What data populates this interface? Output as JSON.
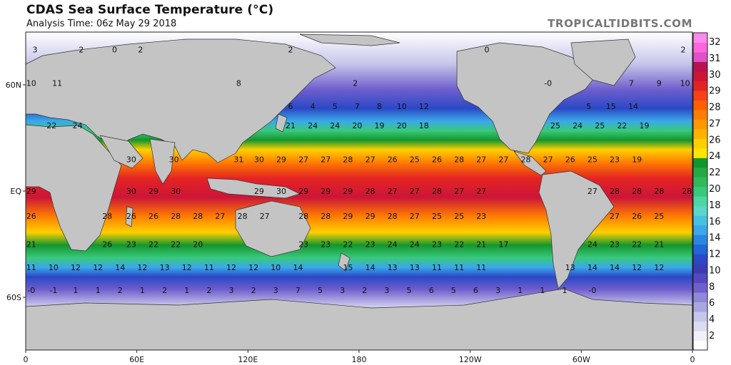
{
  "header": {
    "title": "CDAS Sea Surface Temperature (°C)",
    "subtitle": "Analysis Time: 06z May 29 2018",
    "brand": "TROPICALTIDBITS.COM"
  },
  "axes": {
    "longitude_ticks": [
      "0",
      "60E",
      "120E",
      "180",
      "120W",
      "60W",
      "0"
    ],
    "latitude_ticks": [
      "60N",
      "EQ",
      "60S"
    ]
  },
  "colorbar": {
    "ticks": [
      "32",
      "31",
      "30",
      "29",
      "28",
      "27",
      "26",
      "24",
      "22",
      "20",
      "18",
      "16",
      "14",
      "12",
      "10",
      "8",
      "6",
      "4",
      "2"
    ],
    "colors": [
      "#ffffff",
      "#f0f0f8",
      "#dcdcf0",
      "#c6c6ea",
      "#a9a6e2",
      "#8f87d8",
      "#6f5fcd",
      "#5448c0",
      "#3a3cb4",
      "#2b48c6",
      "#1f66d8",
      "#2a86e2",
      "#3aa8ea",
      "#45c2e2",
      "#5bd6c8",
      "#4cd7a2",
      "#39c97c",
      "#2fba5a",
      "#25aa41",
      "#14962e",
      "#ffe600",
      "#ffd000",
      "#ffb200",
      "#ff9800",
      "#ff7d00",
      "#ff5f00",
      "#f73f1a",
      "#e42323",
      "#cc1638",
      "#b8114f",
      "#e050c8",
      "#ff66dd",
      "#ff88ee"
    ]
  },
  "temperature_labels": [
    {
      "lon": 5,
      "lat": 80,
      "v": "3"
    },
    {
      "lon": 30,
      "lat": 80,
      "v": "2"
    },
    {
      "lon": 48,
      "lat": 80,
      "v": "0"
    },
    {
      "lon": 62,
      "lat": 80,
      "v": "2"
    },
    {
      "lon": 143,
      "lat": 80,
      "v": "2"
    },
    {
      "lon": 249,
      "lat": 80,
      "v": "0"
    },
    {
      "lon": 355,
      "lat": 80,
      "v": "2"
    },
    {
      "lon": 3,
      "lat": 61,
      "v": "10"
    },
    {
      "lon": 17,
      "lat": 61,
      "v": "11"
    },
    {
      "lon": 115,
      "lat": 61,
      "v": "8"
    },
    {
      "lon": 178,
      "lat": 61,
      "v": "2"
    },
    {
      "lon": 282,
      "lat": 61,
      "v": "-0"
    },
    {
      "lon": 327,
      "lat": 61,
      "v": "7"
    },
    {
      "lon": 342,
      "lat": 61,
      "v": "9"
    },
    {
      "lon": 356,
      "lat": 61,
      "v": "10"
    },
    {
      "lon": 143,
      "lat": 48,
      "v": "6"
    },
    {
      "lon": 155,
      "lat": 48,
      "v": "4"
    },
    {
      "lon": 167,
      "lat": 48,
      "v": "5"
    },
    {
      "lon": 179,
      "lat": 48,
      "v": "7"
    },
    {
      "lon": 191,
      "lat": 48,
      "v": "8"
    },
    {
      "lon": 203,
      "lat": 48,
      "v": "10"
    },
    {
      "lon": 215,
      "lat": 48,
      "v": "12"
    },
    {
      "lon": 304,
      "lat": 48,
      "v": "5"
    },
    {
      "lon": 316,
      "lat": 48,
      "v": "15"
    },
    {
      "lon": 328,
      "lat": 48,
      "v": "14"
    },
    {
      "lon": 28,
      "lat": 37,
      "v": "24"
    },
    {
      "lon": 14,
      "lat": 37,
      "v": "22"
    },
    {
      "lon": 143,
      "lat": 37,
      "v": "21"
    },
    {
      "lon": 155,
      "lat": 37,
      "v": "24"
    },
    {
      "lon": 167,
      "lat": 37,
      "v": "24"
    },
    {
      "lon": 179,
      "lat": 37,
      "v": "20"
    },
    {
      "lon": 191,
      "lat": 37,
      "v": "19"
    },
    {
      "lon": 203,
      "lat": 37,
      "v": "20"
    },
    {
      "lon": 215,
      "lat": 37,
      "v": "18"
    },
    {
      "lon": 286,
      "lat": 37,
      "v": "25"
    },
    {
      "lon": 298,
      "lat": 37,
      "v": "24"
    },
    {
      "lon": 310,
      "lat": 37,
      "v": "25"
    },
    {
      "lon": 322,
      "lat": 37,
      "v": "22"
    },
    {
      "lon": 334,
      "lat": 37,
      "v": "19"
    },
    {
      "lon": 57,
      "lat": 18,
      "v": "30"
    },
    {
      "lon": 80,
      "lat": 18,
      "v": "30"
    },
    {
      "lon": 115,
      "lat": 18,
      "v": "31"
    },
    {
      "lon": 126,
      "lat": 18,
      "v": "30"
    },
    {
      "lon": 138,
      "lat": 18,
      "v": "29"
    },
    {
      "lon": 150,
      "lat": 18,
      "v": "27"
    },
    {
      "lon": 162,
      "lat": 18,
      "v": "27"
    },
    {
      "lon": 174,
      "lat": 18,
      "v": "28"
    },
    {
      "lon": 186,
      "lat": 18,
      "v": "27"
    },
    {
      "lon": 198,
      "lat": 18,
      "v": "26"
    },
    {
      "lon": 210,
      "lat": 18,
      "v": "25"
    },
    {
      "lon": 222,
      "lat": 18,
      "v": "26"
    },
    {
      "lon": 234,
      "lat": 18,
      "v": "28"
    },
    {
      "lon": 246,
      "lat": 18,
      "v": "27"
    },
    {
      "lon": 258,
      "lat": 18,
      "v": "27"
    },
    {
      "lon": 270,
      "lat": 18,
      "v": "28"
    },
    {
      "lon": 282,
      "lat": 18,
      "v": "27"
    },
    {
      "lon": 294,
      "lat": 18,
      "v": "26"
    },
    {
      "lon": 306,
      "lat": 18,
      "v": "25"
    },
    {
      "lon": 318,
      "lat": 18,
      "v": "23"
    },
    {
      "lon": 330,
      "lat": 18,
      "v": "19"
    },
    {
      "lon": 3,
      "lat": 0,
      "v": "29"
    },
    {
      "lon": 57,
      "lat": 0,
      "v": "30"
    },
    {
      "lon": 69,
      "lat": 0,
      "v": "29"
    },
    {
      "lon": 81,
      "lat": 0,
      "v": "30"
    },
    {
      "lon": 126,
      "lat": 0,
      "v": "29"
    },
    {
      "lon": 138,
      "lat": 0,
      "v": "30"
    },
    {
      "lon": 150,
      "lat": 0,
      "v": "29"
    },
    {
      "lon": 162,
      "lat": 0,
      "v": "29"
    },
    {
      "lon": 174,
      "lat": 0,
      "v": "29"
    },
    {
      "lon": 186,
      "lat": 0,
      "v": "28"
    },
    {
      "lon": 198,
      "lat": 0,
      "v": "27"
    },
    {
      "lon": 210,
      "lat": 0,
      "v": "27"
    },
    {
      "lon": 222,
      "lat": 0,
      "v": "28"
    },
    {
      "lon": 234,
      "lat": 0,
      "v": "27"
    },
    {
      "lon": 246,
      "lat": 0,
      "v": "27"
    },
    {
      "lon": 306,
      "lat": 0,
      "v": "27"
    },
    {
      "lon": 318,
      "lat": 0,
      "v": "28"
    },
    {
      "lon": 330,
      "lat": 0,
      "v": "28"
    },
    {
      "lon": 342,
      "lat": 0,
      "v": "28"
    },
    {
      "lon": 357,
      "lat": 0,
      "v": "28"
    },
    {
      "lon": 3,
      "lat": -14,
      "v": "26"
    },
    {
      "lon": 44,
      "lat": -14,
      "v": "28"
    },
    {
      "lon": 57,
      "lat": -14,
      "v": "26"
    },
    {
      "lon": 69,
      "lat": -14,
      "v": "26"
    },
    {
      "lon": 81,
      "lat": -14,
      "v": "28"
    },
    {
      "lon": 93,
      "lat": -14,
      "v": "28"
    },
    {
      "lon": 105,
      "lat": -14,
      "v": "27"
    },
    {
      "lon": 117,
      "lat": -14,
      "v": "28"
    },
    {
      "lon": 129,
      "lat": -14,
      "v": "27"
    },
    {
      "lon": 150,
      "lat": -14,
      "v": "28"
    },
    {
      "lon": 162,
      "lat": -14,
      "v": "28"
    },
    {
      "lon": 174,
      "lat": -14,
      "v": "29"
    },
    {
      "lon": 186,
      "lat": -14,
      "v": "29"
    },
    {
      "lon": 198,
      "lat": -14,
      "v": "28"
    },
    {
      "lon": 210,
      "lat": -14,
      "v": "27"
    },
    {
      "lon": 222,
      "lat": -14,
      "v": "25"
    },
    {
      "lon": 234,
      "lat": -14,
      "v": "25"
    },
    {
      "lon": 246,
      "lat": -14,
      "v": "23"
    },
    {
      "lon": 318,
      "lat": -14,
      "v": "27"
    },
    {
      "lon": 330,
      "lat": -14,
      "v": "26"
    },
    {
      "lon": 342,
      "lat": -14,
      "v": "25"
    },
    {
      "lon": 3,
      "lat": -30,
      "v": "21"
    },
    {
      "lon": 44,
      "lat": -30,
      "v": "26"
    },
    {
      "lon": 57,
      "lat": -30,
      "v": "23"
    },
    {
      "lon": 69,
      "lat": -30,
      "v": "22"
    },
    {
      "lon": 81,
      "lat": -30,
      "v": "22"
    },
    {
      "lon": 93,
      "lat": -30,
      "v": "20"
    },
    {
      "lon": 150,
      "lat": -30,
      "v": "23"
    },
    {
      "lon": 162,
      "lat": -30,
      "v": "23"
    },
    {
      "lon": 174,
      "lat": -30,
      "v": "22"
    },
    {
      "lon": 186,
      "lat": -30,
      "v": "23"
    },
    {
      "lon": 198,
      "lat": -30,
      "v": "24"
    },
    {
      "lon": 210,
      "lat": -30,
      "v": "24"
    },
    {
      "lon": 222,
      "lat": -30,
      "v": "23"
    },
    {
      "lon": 234,
      "lat": -30,
      "v": "22"
    },
    {
      "lon": 246,
      "lat": -30,
      "v": "21"
    },
    {
      "lon": 258,
      "lat": -30,
      "v": "17"
    },
    {
      "lon": 306,
      "lat": -30,
      "v": "24"
    },
    {
      "lon": 318,
      "lat": -30,
      "v": "23"
    },
    {
      "lon": 330,
      "lat": -30,
      "v": "22"
    },
    {
      "lon": 342,
      "lat": -30,
      "v": "21"
    },
    {
      "lon": 3,
      "lat": -43,
      "v": "11"
    },
    {
      "lon": 15,
      "lat": -43,
      "v": "10"
    },
    {
      "lon": 27,
      "lat": -43,
      "v": "12"
    },
    {
      "lon": 39,
      "lat": -43,
      "v": "12"
    },
    {
      "lon": 51,
      "lat": -43,
      "v": "14"
    },
    {
      "lon": 63,
      "lat": -43,
      "v": "12"
    },
    {
      "lon": 75,
      "lat": -43,
      "v": "13"
    },
    {
      "lon": 87,
      "lat": -43,
      "v": "12"
    },
    {
      "lon": 99,
      "lat": -43,
      "v": "11"
    },
    {
      "lon": 111,
      "lat": -43,
      "v": "12"
    },
    {
      "lon": 123,
      "lat": -43,
      "v": "12"
    },
    {
      "lon": 135,
      "lat": -43,
      "v": "10"
    },
    {
      "lon": 147,
      "lat": -43,
      "v": "14"
    },
    {
      "lon": 174,
      "lat": -43,
      "v": "15"
    },
    {
      "lon": 186,
      "lat": -43,
      "v": "14"
    },
    {
      "lon": 198,
      "lat": -43,
      "v": "13"
    },
    {
      "lon": 210,
      "lat": -43,
      "v": "13"
    },
    {
      "lon": 222,
      "lat": -43,
      "v": "11"
    },
    {
      "lon": 234,
      "lat": -43,
      "v": "11"
    },
    {
      "lon": 246,
      "lat": -43,
      "v": "11"
    },
    {
      "lon": 294,
      "lat": -43,
      "v": "13"
    },
    {
      "lon": 306,
      "lat": -43,
      "v": "14"
    },
    {
      "lon": 318,
      "lat": -43,
      "v": "14"
    },
    {
      "lon": 330,
      "lat": -43,
      "v": "12"
    },
    {
      "lon": 342,
      "lat": -43,
      "v": "12"
    },
    {
      "lon": 3,
      "lat": -56,
      "v": "-0"
    },
    {
      "lon": 15,
      "lat": -56,
      "v": "-1"
    },
    {
      "lon": 27,
      "lat": -56,
      "v": "1"
    },
    {
      "lon": 39,
      "lat": -56,
      "v": "1"
    },
    {
      "lon": 51,
      "lat": -56,
      "v": "2"
    },
    {
      "lon": 63,
      "lat": -56,
      "v": "1"
    },
    {
      "lon": 75,
      "lat": -56,
      "v": "2"
    },
    {
      "lon": 87,
      "lat": -56,
      "v": "1"
    },
    {
      "lon": 99,
      "lat": -56,
      "v": "2"
    },
    {
      "lon": 111,
      "lat": -56,
      "v": "3"
    },
    {
      "lon": 123,
      "lat": -56,
      "v": "2"
    },
    {
      "lon": 135,
      "lat": -56,
      "v": "3"
    },
    {
      "lon": 147,
      "lat": -56,
      "v": "7"
    },
    {
      "lon": 159,
      "lat": -56,
      "v": "5"
    },
    {
      "lon": 171,
      "lat": -56,
      "v": "3"
    },
    {
      "lon": 183,
      "lat": -56,
      "v": "2"
    },
    {
      "lon": 195,
      "lat": -56,
      "v": "3"
    },
    {
      "lon": 207,
      "lat": -56,
      "v": "5"
    },
    {
      "lon": 219,
      "lat": -56,
      "v": "6"
    },
    {
      "lon": 231,
      "lat": -56,
      "v": "5"
    },
    {
      "lon": 243,
      "lat": -56,
      "v": "6"
    },
    {
      "lon": 255,
      "lat": -56,
      "v": "3"
    },
    {
      "lon": 267,
      "lat": -56,
      "v": "1"
    },
    {
      "lon": 279,
      "lat": -56,
      "v": "1"
    },
    {
      "lon": 291,
      "lat": -56,
      "v": "1"
    },
    {
      "lon": 306,
      "lat": -56,
      "v": "-0"
    }
  ]
}
